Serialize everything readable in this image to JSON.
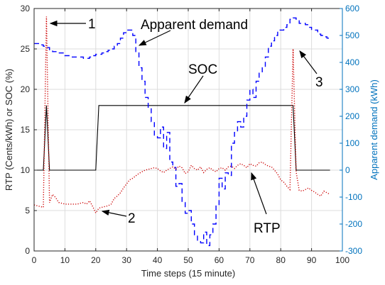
{
  "chart_data": {
    "type": "line",
    "xlabel": "Time steps (15 minute)",
    "ylabel_left": "RTP (Cents/kWh) or SOC (%)",
    "ylabel_right": "Apparent demand (kWh)",
    "xlim": [
      0,
      100
    ],
    "ylim_left": [
      0,
      30
    ],
    "ylim_right": [
      -300,
      600
    ],
    "x_ticks": [
      0,
      10,
      20,
      30,
      40,
      50,
      60,
      70,
      80,
      90,
      100
    ],
    "y_ticks_left": [
      0,
      5,
      10,
      15,
      20,
      25,
      30
    ],
    "y_ticks_right": [
      -300,
      -200,
      -100,
      0,
      100,
      200,
      300,
      400,
      500,
      600
    ],
    "grid": true,
    "colors": {
      "soc": "#000000",
      "apparent_demand": "#0000ff",
      "rtp": "#cc0000",
      "right_axis": "#0072bd",
      "grid": "#dcdcdc"
    },
    "series": [
      {
        "name": "SOC",
        "axis": "left",
        "style": "solid",
        "x": [
          0,
          3,
          4,
          5,
          20,
          21,
          84,
          85,
          96
        ],
        "y": [
          10,
          10,
          18,
          10,
          10,
          18,
          18,
          10,
          10
        ]
      },
      {
        "name": "Apparent demand",
        "axis": "right",
        "style": "dashed",
        "x": [
          0,
          1,
          2,
          3,
          4,
          5,
          6,
          7,
          8,
          9,
          10,
          11,
          12,
          13,
          14,
          15,
          16,
          17,
          18,
          19,
          20,
          21,
          22,
          23,
          24,
          25,
          26,
          27,
          28,
          29,
          30,
          31,
          32,
          33,
          34,
          35,
          36,
          37,
          38,
          39,
          40,
          41,
          42,
          43,
          44,
          45,
          46,
          47,
          48,
          49,
          50,
          51,
          52,
          53,
          54,
          55,
          56,
          57,
          58,
          59,
          60,
          61,
          62,
          63,
          64,
          65,
          66,
          67,
          68,
          69,
          70,
          71,
          72,
          73,
          74,
          75,
          76,
          77,
          78,
          79,
          80,
          81,
          82,
          83,
          84,
          85,
          86,
          87,
          88,
          89,
          90,
          91,
          92,
          93,
          94,
          95,
          96
        ],
        "y": [
          470,
          470,
          465,
          460,
          455,
          445,
          440,
          440,
          435,
          435,
          425,
          425,
          420,
          420,
          420,
          420,
          415,
          415,
          420,
          425,
          430,
          430,
          435,
          440,
          445,
          450,
          460,
          470,
          490,
          510,
          520,
          520,
          500,
          440,
          380,
          330,
          270,
          230,
          180,
          130,
          120,
          160,
          80,
          140,
          30,
          10,
          -60,
          -50,
          -120,
          -160,
          -150,
          -200,
          -240,
          -260,
          -270,
          -230,
          -280,
          -240,
          -200,
          -130,
          -30,
          -70,
          -10,
          -20,
          100,
          140,
          180,
          160,
          200,
          260,
          300,
          270,
          330,
          360,
          380,
          420,
          460,
          480,
          500,
          520,
          520,
          530,
          540,
          560,
          565,
          560,
          545,
          545,
          540,
          530,
          520,
          520,
          505,
          500,
          495,
          490,
          485
        ]
      },
      {
        "name": "RTP",
        "axis": "left",
        "style": "dotted",
        "x": [
          0,
          1,
          2,
          3,
          4,
          5,
          6,
          7,
          8,
          9,
          10,
          11,
          12,
          13,
          14,
          15,
          16,
          17,
          18,
          19,
          20,
          21,
          22,
          23,
          24,
          25,
          26,
          27,
          28,
          29,
          30,
          31,
          32,
          33,
          34,
          35,
          36,
          37,
          38,
          39,
          40,
          41,
          42,
          43,
          44,
          45,
          46,
          47,
          48,
          49,
          50,
          51,
          52,
          53,
          54,
          55,
          56,
          57,
          58,
          59,
          60,
          61,
          62,
          63,
          64,
          65,
          66,
          67,
          68,
          69,
          70,
          71,
          72,
          73,
          74,
          75,
          76,
          77,
          78,
          79,
          80,
          81,
          82,
          83,
          84,
          85,
          86,
          87,
          88,
          89,
          90,
          91,
          92,
          93,
          94,
          95,
          96
        ],
        "y": [
          5.7,
          5.6,
          5.5,
          5.4,
          29,
          6.0,
          7.0,
          6.6,
          6.0,
          5.9,
          5.8,
          5.8,
          5.8,
          5.8,
          5.8,
          5.9,
          6.0,
          5.8,
          6.2,
          5.5,
          4.7,
          5.3,
          5.4,
          5.5,
          5.6,
          5.8,
          6.5,
          6.8,
          7.2,
          7.8,
          8.3,
          8.8,
          9.0,
          9.3,
          9.6,
          9.8,
          10.0,
          10.1,
          10.2,
          10.3,
          10.2,
          9.9,
          9.7,
          10.0,
          10.2,
          10.4,
          10.1,
          10.5,
          10.3,
          9.6,
          9.8,
          10.6,
          10.2,
          10.0,
          10.4,
          9.7,
          10.1,
          10.3,
          10.0,
          9.8,
          10.2,
          10.3,
          10.0,
          10.4,
          10.5,
          10.2,
          10.6,
          10.8,
          10.6,
          10.3,
          10.8,
          10.6,
          10.5,
          10.9,
          11.0,
          10.7,
          10.5,
          10.4,
          10.0,
          9.5,
          8.8,
          8.5,
          8.0,
          7.6,
          25,
          9.8,
          7.5,
          7.4,
          7.6,
          7.8,
          7.5,
          7.3,
          7.0,
          6.8,
          7.4,
          7.2,
          7.0
        ]
      }
    ],
    "annotations": [
      {
        "id": "series-label-apparent-demand",
        "text": "Apparent demand",
        "target_x": 34,
        "target_axis": "right",
        "target_y": 480
      },
      {
        "id": "series-label-soc",
        "text": "SOC",
        "target_x": 50,
        "target_axis": "left",
        "target_y": 18
      },
      {
        "id": "series-label-rtp",
        "text": "RTP",
        "target_x": 71,
        "target_axis": "left",
        "target_y": 9.5
      },
      {
        "id": "marker-1",
        "text": "1",
        "target_x": 5,
        "target_axis": "left",
        "target_y": 28.3
      },
      {
        "id": "marker-2",
        "text": "2",
        "target_x": 20,
        "target_axis": "left",
        "target_y": 5.0
      },
      {
        "id": "marker-3",
        "text": "3",
        "target_x": 87,
        "target_axis": "right",
        "target_y": 450
      }
    ]
  }
}
